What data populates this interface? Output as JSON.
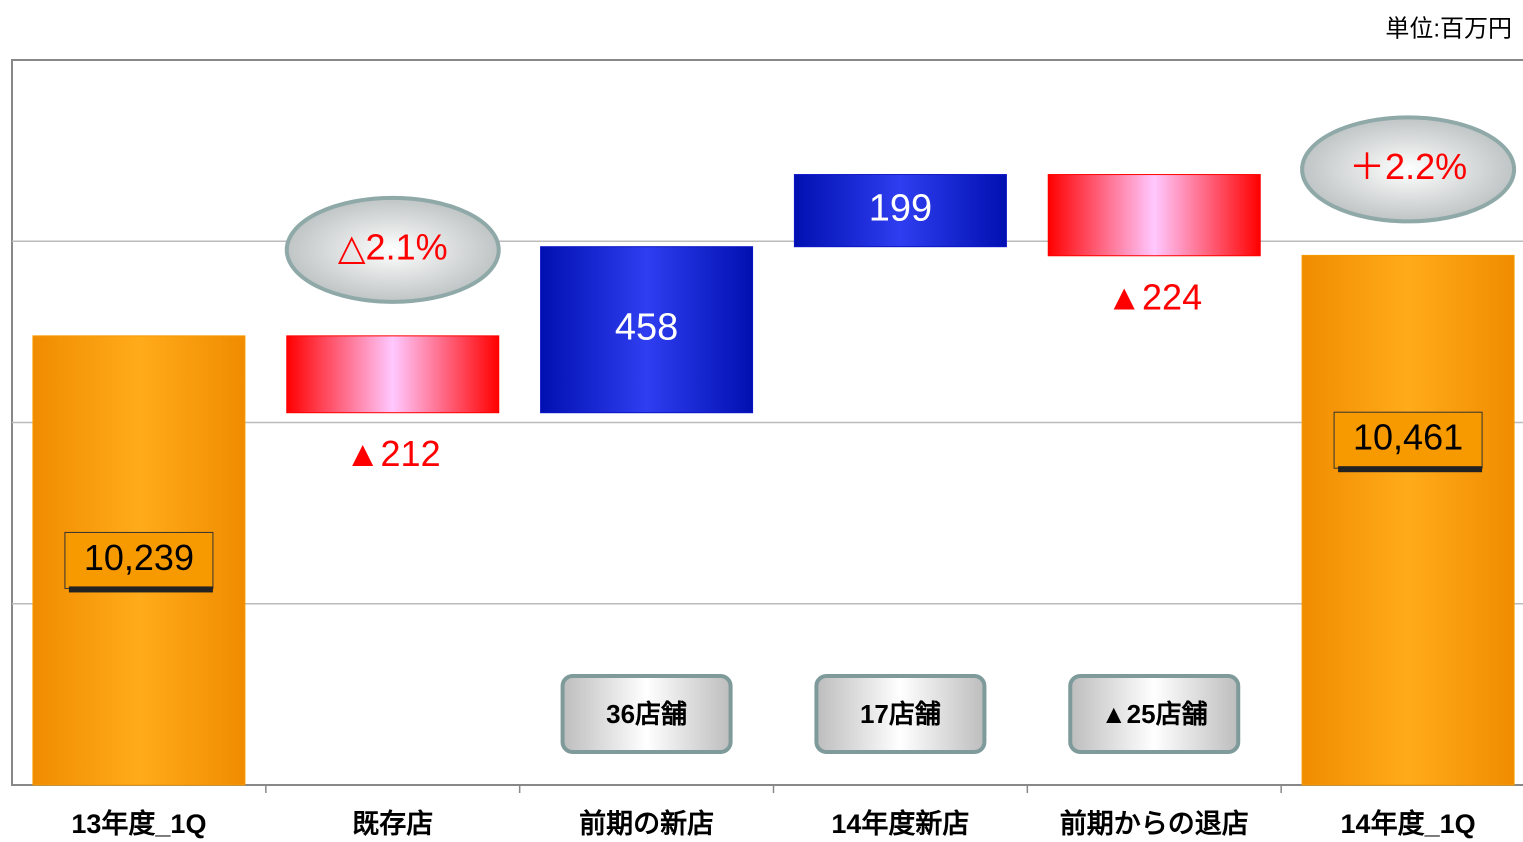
{
  "chart_data": {
    "type": "waterfall",
    "unit_label": "単位:百万円",
    "categories": [
      "13年度_1Q",
      "既存店",
      "前期の新店",
      "14年度新店",
      "前期からの退店",
      "14年度_1Q"
    ],
    "values": [
      10239,
      -212,
      458,
      199,
      -224,
      10461
    ],
    "value_labels": [
      "10,239",
      "▲212",
      "458",
      "199",
      "▲224",
      "10,461"
    ],
    "totals": [
      true,
      false,
      false,
      false,
      false,
      true
    ],
    "rate_labels": [
      null,
      "△2.1%",
      null,
      null,
      null,
      "＋2.2%"
    ],
    "store_labels": [
      null,
      null,
      "36店舗",
      "17店舗",
      "▲25店舗",
      null
    ],
    "colors": {
      "total": "#f79a00",
      "increase": "#0a14c8",
      "decrease": "#ff0000"
    },
    "ylim": [
      9000,
      11000
    ],
    "yticks": [
      9500,
      10000,
      10500
    ],
    "grid": true
  }
}
